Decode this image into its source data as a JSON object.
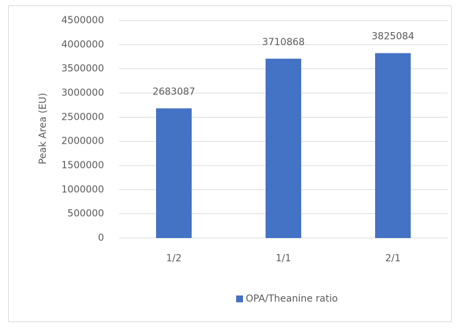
{
  "chart_data": {
    "type": "bar",
    "y_label": "Peak Area (EU)",
    "categories": [
      "1/2",
      "1/1",
      "2/1"
    ],
    "series": [
      {
        "name": "OPA/Theanine ratio",
        "color": "#4472c4",
        "values": [
          2683087,
          3710868,
          3825084
        ]
      }
    ],
    "ylim": [
      0,
      4500000
    ],
    "yticks": [
      0,
      500000,
      1000000,
      1500000,
      2000000,
      2500000,
      3000000,
      3500000,
      4000000,
      4500000
    ],
    "grid": true,
    "data_labels": true,
    "legend": "bottom"
  }
}
